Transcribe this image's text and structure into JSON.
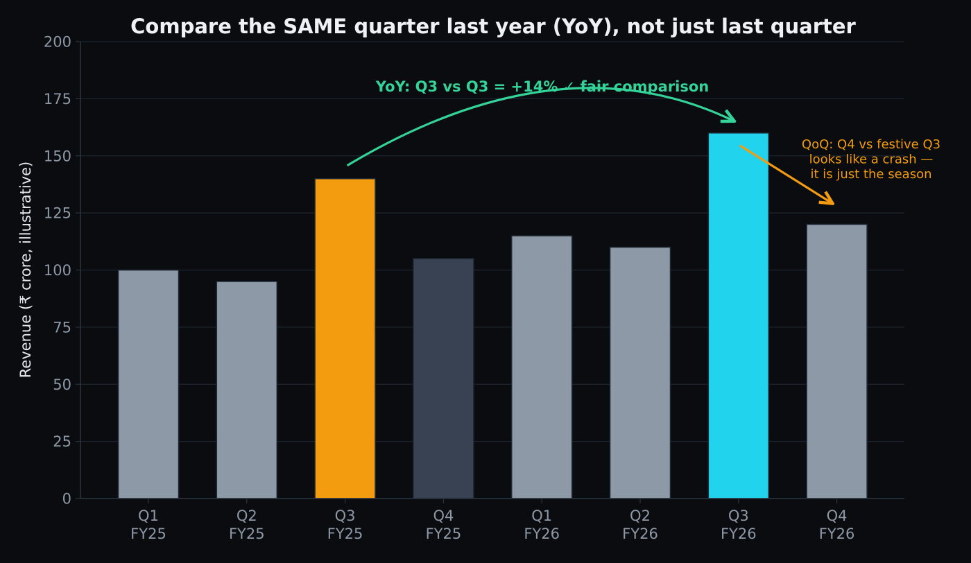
{
  "chart_data": {
    "type": "bar",
    "title": "Compare the SAME quarter last year (YoY), not just last quarter",
    "ylabel": "Revenue (₹ crore, illustrative)",
    "xlabel": "",
    "ylim": [
      0,
      200
    ],
    "yticks": [
      0,
      25,
      50,
      75,
      100,
      125,
      150,
      175,
      200
    ],
    "grid": true,
    "categories": [
      [
        "Q1",
        "FY25"
      ],
      [
        "Q2",
        "FY25"
      ],
      [
        "Q3",
        "FY25"
      ],
      [
        "Q4",
        "FY25"
      ],
      [
        "Q1",
        "FY26"
      ],
      [
        "Q2",
        "FY26"
      ],
      [
        "Q3",
        "FY26"
      ],
      [
        "Q4",
        "FY26"
      ]
    ],
    "values": [
      100,
      95,
      140,
      105,
      115,
      110,
      160,
      120
    ],
    "bar_colors": [
      "#8d99a6",
      "#8d99a6",
      "#f39c0f",
      "#384252",
      "#8d99a6",
      "#8d99a6",
      "#22d3ee",
      "#8d99a6"
    ],
    "annotations": {
      "yoy": {
        "text": "YoY: Q3 vs Q3 = +14% ✓ fair comparison",
        "color": "#34d399",
        "from_category": 2,
        "to_category": 6
      },
      "qoq": {
        "lines": [
          "QoQ: Q4 vs festive Q3",
          "looks like a crash —",
          "it is just the season"
        ],
        "color": "#f39c0f",
        "from_category": 6,
        "to_category": 7
      }
    }
  },
  "theme": {
    "background": "#0b0c10",
    "title_color": "#eef1f5",
    "tick_color": "#8d99a6",
    "ylabel_color": "#e5e9ef",
    "grid_color": "#1c2630",
    "axis_color": "#2a343f",
    "bar_edge": "#1e2935"
  }
}
